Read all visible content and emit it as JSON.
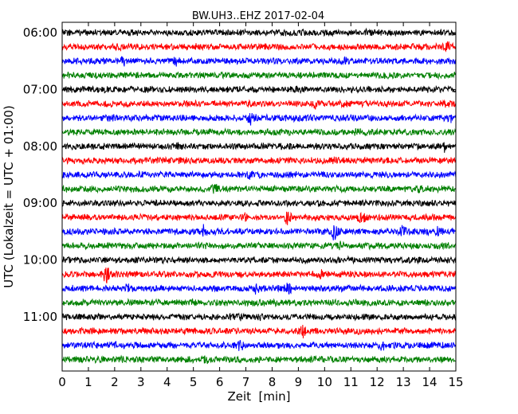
{
  "chart_data": {
    "type": "line",
    "title": "BW.UH3..EHZ 2017-02-04",
    "xlabel": "Zeit  [min]",
    "ylabel": "UTC (Lokalzeit = UTC + 01:00)",
    "xlim": [
      0,
      15
    ],
    "x_ticks": [
      "0",
      "1",
      "2",
      "3",
      "4",
      "5",
      "6",
      "7",
      "8",
      "9",
      "10",
      "11",
      "12",
      "13",
      "14",
      "15"
    ],
    "y_ticks": [
      "06:00",
      "07:00",
      "08:00",
      "09:00",
      "10:00",
      "11:00"
    ],
    "trace_interval_min": 15,
    "color_cycle": [
      "#000000",
      "#ff0000",
      "#0000ff",
      "#008000"
    ],
    "series": [
      {
        "start": "06:00",
        "events": [
          [
            11.6,
            1.4
          ]
        ]
      },
      {
        "start": "06:15",
        "events": [
          [
            2.2,
            1.5
          ],
          [
            5.2,
            1.6
          ],
          [
            14.7,
            1.8
          ]
        ]
      },
      {
        "start": "06:30",
        "events": [
          [
            2.3,
            2.0
          ],
          [
            4.3,
            1.8
          ],
          [
            10.8,
            1.6
          ],
          [
            13.5,
            1.3
          ]
        ]
      },
      {
        "start": "06:45",
        "events": [
          [
            12.3,
            1.3
          ]
        ]
      },
      {
        "start": "07:00",
        "events": [
          [
            1.6,
            1.3
          ]
        ]
      },
      {
        "start": "07:15",
        "events": [
          [
            1.6,
            1.4
          ],
          [
            9.6,
            1.8
          ],
          [
            14.7,
            1.7
          ]
        ]
      },
      {
        "start": "07:30",
        "events": [
          [
            1.8,
            1.4
          ],
          [
            7.2,
            2.6
          ],
          [
            8.8,
            1.7
          ],
          [
            14.8,
            1.8
          ]
        ]
      },
      {
        "start": "07:45",
        "events": [
          [
            11.2,
            1.4
          ]
        ]
      },
      {
        "start": "08:00",
        "events": [
          [
            4.4,
            1.5
          ],
          [
            14.6,
            2.2
          ]
        ]
      },
      {
        "start": "08:15",
        "events": [
          [
            10.3,
            1.6
          ]
        ]
      },
      {
        "start": "08:30",
        "events": [
          [
            7.2,
            1.6
          ]
        ]
      },
      {
        "start": "08:45",
        "events": [
          [
            5.8,
            1.8
          ],
          [
            13.6,
            1.7
          ]
        ]
      },
      {
        "start": "09:00",
        "events": [
          [
            12.6,
            1.5
          ]
        ]
      },
      {
        "start": "09:15",
        "events": [
          [
            7.0,
            1.9
          ],
          [
            8.6,
            2.4
          ],
          [
            11.4,
            2.6
          ],
          [
            14.9,
            2.0
          ]
        ]
      },
      {
        "start": "09:30",
        "events": [
          [
            5.4,
            2.6
          ],
          [
            10.4,
            4.0
          ],
          [
            13.0,
            2.3
          ],
          [
            14.3,
            2.0
          ]
        ]
      },
      {
        "start": "09:45",
        "events": [
          [
            10.6,
            1.6
          ]
        ]
      },
      {
        "start": "10:00",
        "events": [
          [
            10.5,
            1.3
          ]
        ]
      },
      {
        "start": "10:15",
        "events": [
          [
            1.7,
            3.2
          ],
          [
            9.8,
            2.2
          ]
        ]
      },
      {
        "start": "10:30",
        "events": [
          [
            2.5,
            2.1
          ],
          [
            7.4,
            1.8
          ],
          [
            8.6,
            2.4
          ]
        ]
      },
      {
        "start": "10:45",
        "events": [
          [
            5.0,
            1.9
          ]
        ]
      },
      {
        "start": "11:00",
        "events": [
          [
            6.8,
            1.3
          ],
          [
            7.6,
            1.4
          ]
        ]
      },
      {
        "start": "11:15",
        "events": [
          [
            9.2,
            2.4
          ]
        ]
      },
      {
        "start": "11:30",
        "events": [
          [
            6.8,
            2.2
          ],
          [
            12.2,
            1.8
          ],
          [
            2.0,
            1.3
          ]
        ]
      },
      {
        "start": "11:45",
        "events": [
          [
            5.5,
            2.0
          ]
        ]
      }
    ]
  }
}
